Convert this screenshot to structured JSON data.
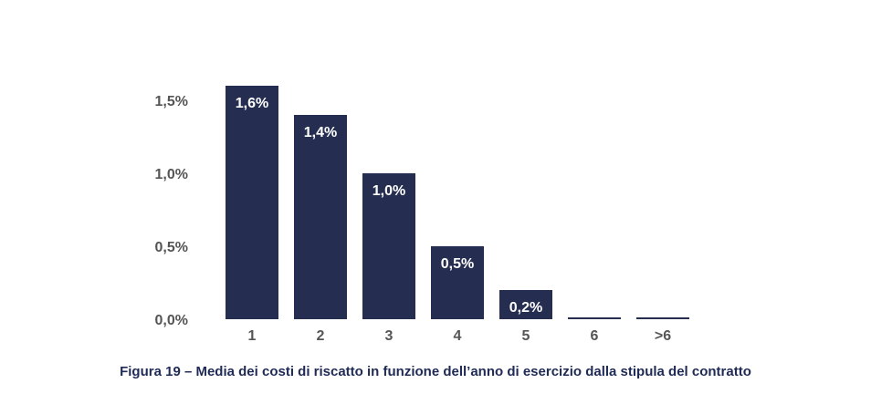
{
  "chart_data": {
    "type": "bar",
    "categories": [
      "1",
      "2",
      "3",
      "4",
      "5",
      "6",
      ">6"
    ],
    "values": [
      1.6,
      1.4,
      1.0,
      0.5,
      0.2,
      0.0,
      0.0
    ],
    "data_labels": [
      "1,6%",
      "1,4%",
      "1,0%",
      "0,5%",
      "0,2%",
      "",
      ""
    ],
    "y_ticks": [
      0.0,
      0.5,
      1.0,
      1.5
    ],
    "y_tick_labels": [
      "0,0%",
      "0,5%",
      "1,0%",
      "1,5%"
    ],
    "ylim": [
      0,
      1.6
    ],
    "grid": false,
    "legend": "none",
    "colors": {
      "bar": "#252e50",
      "axis_text": "#555555",
      "data_label": "#ffffff"
    }
  },
  "caption": "Figura 19 – Media dei costi di riscatto in funzione dell’anno di esercizio dalla stipula del contratto"
}
